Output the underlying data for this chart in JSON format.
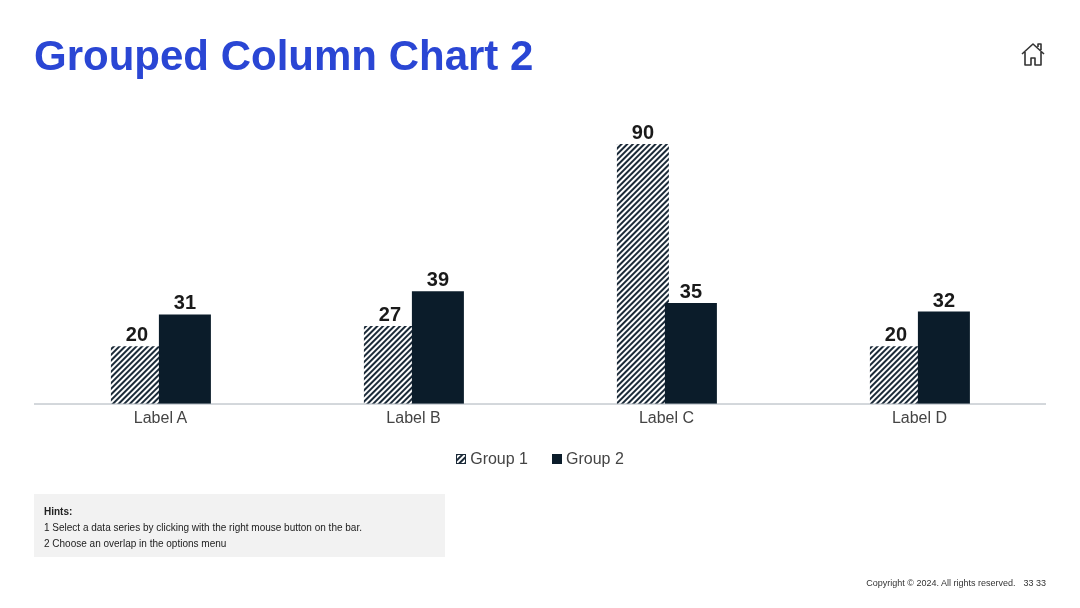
{
  "chart_data": {
    "type": "bar",
    "title": "Grouped Column Chart 2",
    "categories": [
      "Label A",
      "Label B",
      "Label C",
      "Label D"
    ],
    "series": [
      {
        "name": "Group 1",
        "color": "#1b2a38",
        "values": [
          20,
          27,
          90,
          20
        ]
      },
      {
        "name": "Group 2",
        "color": "#0b1c2a",
        "values": [
          31,
          39,
          35,
          32
        ]
      }
    ],
    "data_labels": true,
    "legend": "bottom",
    "grid": false,
    "annotations": [
      "Hints:",
      "1  Select a data series by clicking with the right mouse button on the bar.",
      "2  Choose an overlap in the options menu",
      "Copyright © 2024. All rights reserved.",
      "33 33"
    ]
  }
}
